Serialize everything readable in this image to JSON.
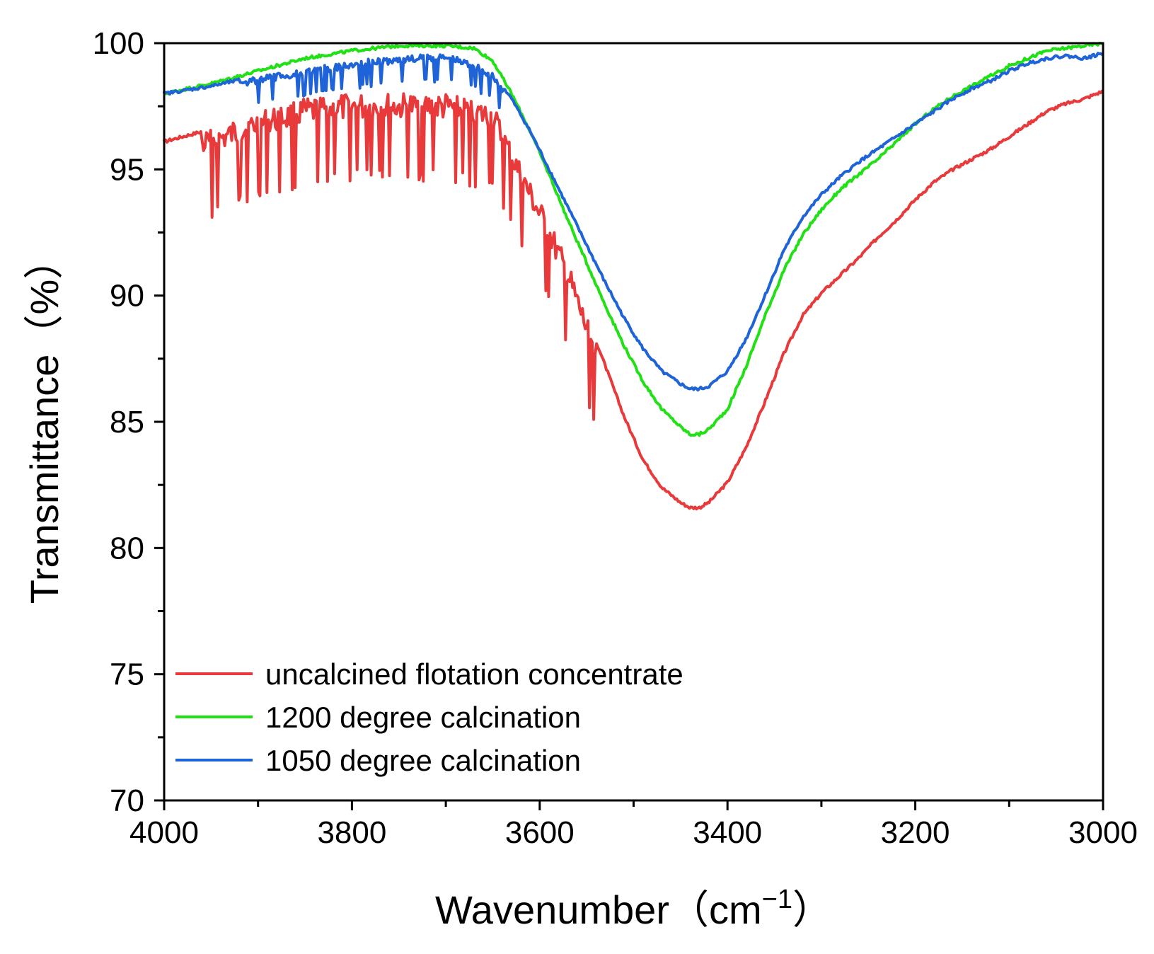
{
  "chart_data": {
    "type": "line",
    "title": "",
    "xlabel": "Wavenumber",
    "xlabel_unit_open": "（cm",
    "xlabel_unit_sup": "−1",
    "xlabel_unit_close": "）",
    "ylabel": "Transmittance（%）",
    "xlim": [
      4000,
      3000
    ],
    "ylim": [
      70,
      100
    ],
    "x_ticks": [
      4000,
      3800,
      3600,
      3400,
      3200,
      3000
    ],
    "x_tick_labels": [
      "4000",
      "3800",
      "3600",
      "3400",
      "3200",
      "3000"
    ],
    "y_ticks": [
      70,
      75,
      80,
      85,
      90,
      95,
      100
    ],
    "y_tick_labels": [
      "70",
      "75",
      "80",
      "85",
      "90",
      "95",
      "100"
    ],
    "grid": false,
    "legend_position": "bottom-left",
    "series": [
      {
        "name": "uncalcined flotation concentrate",
        "color": "#e8393b",
        "noise_from": 3960,
        "noise_to": 3540,
        "noise_amp": 1.1,
        "x": [
          4000,
          3950,
          3900,
          3850,
          3800,
          3750,
          3700,
          3650,
          3630,
          3610,
          3590,
          3570,
          3550,
          3530,
          3510,
          3490,
          3470,
          3450,
          3440,
          3430,
          3420,
          3400,
          3380,
          3360,
          3340,
          3320,
          3300,
          3280,
          3260,
          3240,
          3220,
          3200,
          3180,
          3160,
          3140,
          3120,
          3100,
          3080,
          3060,
          3040,
          3020,
          3000
        ],
        "y": [
          96.1,
          96.6,
          97.3,
          97.8,
          98.0,
          98.0,
          98.0,
          97.6,
          96.0,
          94.5,
          93.0,
          91.3,
          89.2,
          87.2,
          85.2,
          83.5,
          82.4,
          81.8,
          81.6,
          81.6,
          81.8,
          82.6,
          84.0,
          85.8,
          87.7,
          89.2,
          90.1,
          90.8,
          91.5,
          92.3,
          93.0,
          93.8,
          94.5,
          95.0,
          95.4,
          95.8,
          96.3,
          96.8,
          97.3,
          97.6,
          97.8,
          98.1
        ]
      },
      {
        "name": "1200 degree calcination",
        "color": "#22e016",
        "noise_from": 0,
        "noise_to": 0,
        "noise_amp": 0,
        "x": [
          4000,
          3950,
          3900,
          3850,
          3800,
          3750,
          3700,
          3670,
          3650,
          3630,
          3610,
          3590,
          3570,
          3550,
          3530,
          3510,
          3490,
          3470,
          3450,
          3440,
          3430,
          3420,
          3400,
          3380,
          3360,
          3340,
          3320,
          3300,
          3280,
          3260,
          3240,
          3220,
          3200,
          3180,
          3160,
          3140,
          3120,
          3100,
          3080,
          3060,
          3040,
          3020,
          3000
        ],
        "y": [
          98.0,
          98.4,
          98.9,
          99.4,
          99.7,
          99.9,
          99.9,
          99.8,
          99.3,
          98.0,
          96.5,
          94.8,
          93.0,
          91.3,
          89.6,
          88.0,
          86.6,
          85.5,
          84.8,
          84.5,
          84.5,
          84.7,
          85.5,
          87.2,
          89.2,
          91.0,
          92.4,
          93.4,
          94.2,
          94.8,
          95.4,
          96.1,
          96.8,
          97.4,
          97.9,
          98.3,
          98.7,
          99.1,
          99.4,
          99.7,
          99.8,
          99.9,
          100.0
        ]
      },
      {
        "name": "1050 degree calcination",
        "color": "#1f63d8",
        "noise_from": 3920,
        "noise_to": 3640,
        "noise_amp": 0.35,
        "x": [
          4000,
          3950,
          3900,
          3850,
          3800,
          3750,
          3700,
          3670,
          3650,
          3630,
          3610,
          3590,
          3570,
          3550,
          3530,
          3510,
          3490,
          3470,
          3450,
          3440,
          3430,
          3420,
          3400,
          3380,
          3360,
          3340,
          3320,
          3300,
          3280,
          3260,
          3240,
          3220,
          3200,
          3180,
          3160,
          3140,
          3120,
          3100,
          3080,
          3060,
          3040,
          3020,
          3000
        ],
        "y": [
          98.0,
          98.3,
          98.7,
          99.0,
          99.3,
          99.5,
          99.6,
          99.3,
          98.8,
          97.8,
          96.5,
          95.0,
          93.5,
          92.0,
          90.5,
          89.1,
          87.9,
          87.0,
          86.5,
          86.3,
          86.3,
          86.4,
          87.0,
          88.3,
          90.0,
          91.8,
          93.1,
          94.0,
          94.7,
          95.3,
          95.8,
          96.3,
          96.8,
          97.3,
          97.8,
          98.2,
          98.5,
          98.9,
          99.2,
          99.4,
          99.5,
          99.4,
          99.6
        ]
      }
    ]
  }
}
